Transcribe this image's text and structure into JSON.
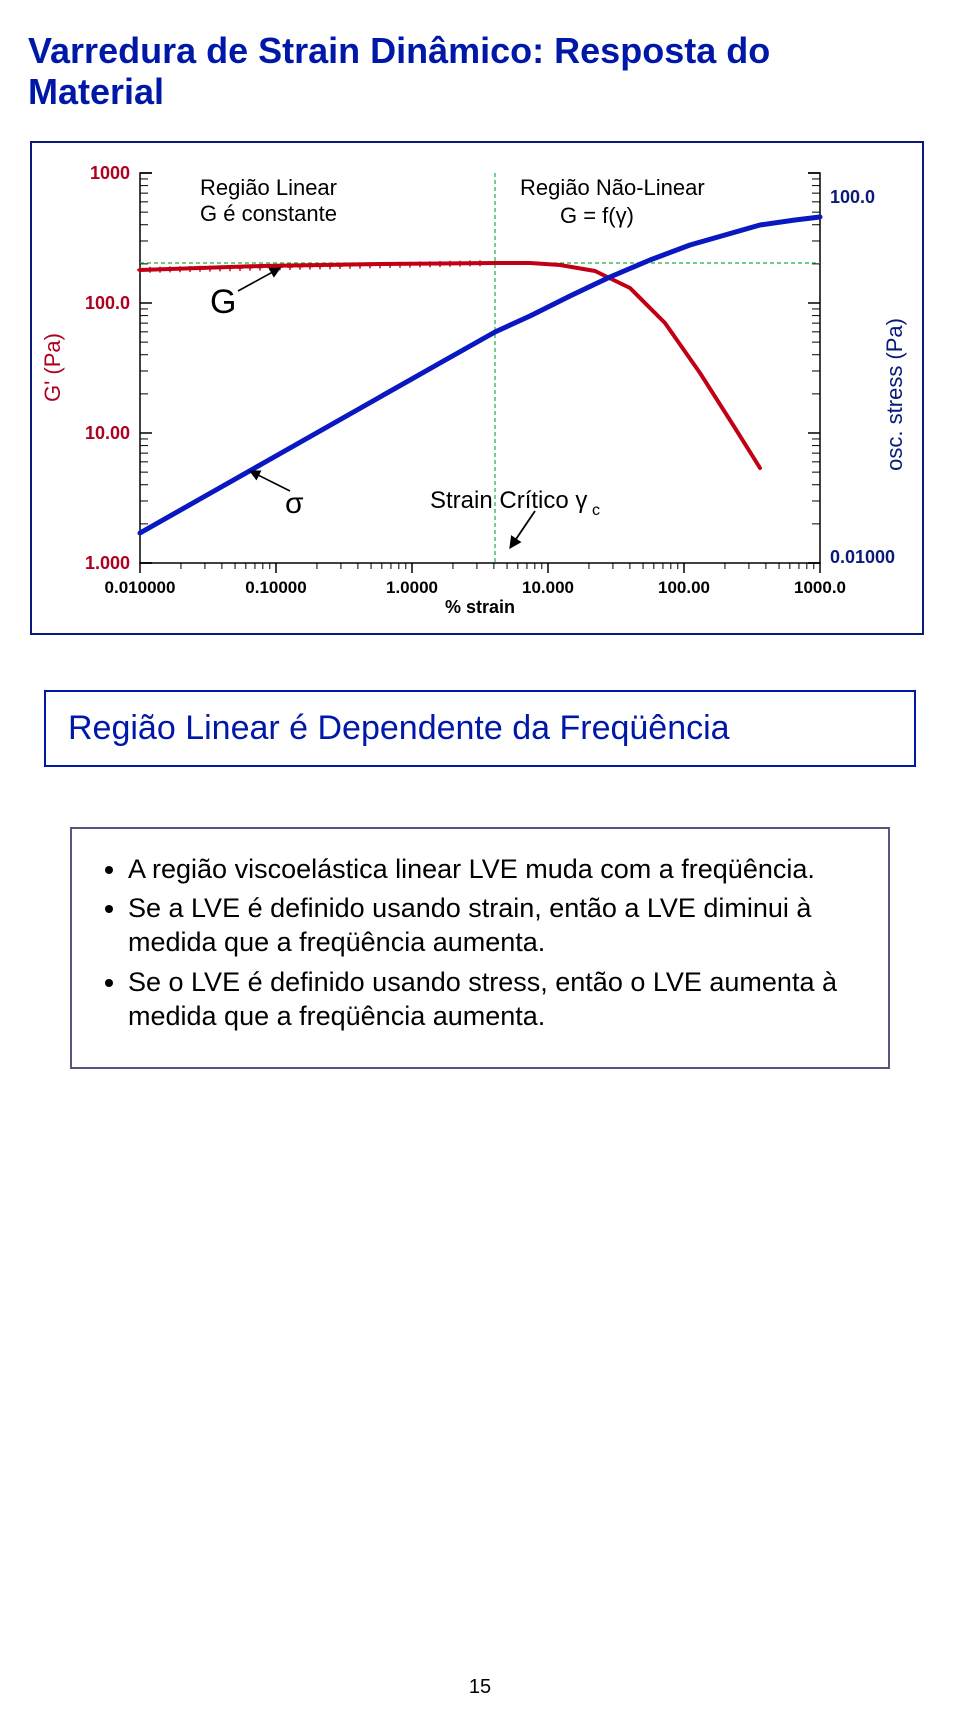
{
  "title_line1": "Varredura de Strain Dinâmico: Resposta do",
  "title_line2": "Material",
  "chart": {
    "type": "line-loglog",
    "x_label": "% strain",
    "y_left_label": "G' (Pa)",
    "y_right_label": "osc. stress (Pa)",
    "x_ticks": [
      "0.010000",
      "0.10000",
      "1.0000",
      "10.000",
      "100.00",
      "1000.0"
    ],
    "y_left_ticks": [
      "1000",
      "100.0",
      "10.00",
      "1.000"
    ],
    "y_right_ticks": [
      "100.0",
      "0.01000"
    ],
    "annotations": {
      "region_linear_l1": "Região Linear",
      "region_linear_l2": "G é constante",
      "region_nonlinear_l1": "Região Não-Linear",
      "region_nonlinear_l2": "G = f(γ)",
      "g_symbol": "G",
      "sigma_symbol": "σ",
      "critical_label": "Strain Crítico γ",
      "critical_sub": "c"
    },
    "colors": {
      "axis": "#000000",
      "tick_text_left": "#b00020",
      "tick_text_right": "#0a1a7a",
      "frame": "#0a1a7a",
      "g_curve": "#c20015",
      "sigma_curve": "#0a18c2",
      "annot_text": "#000000",
      "green_dash": "#1fae3a"
    },
    "g_curve_points": [
      [
        0,
        97
      ],
      [
        60,
        95
      ],
      [
        120,
        93
      ],
      [
        180,
        92
      ],
      [
        240,
        91
      ],
      [
        300,
        90.5
      ],
      [
        355,
        90
      ],
      [
        390,
        90
      ],
      [
        420,
        92
      ],
      [
        455,
        98
      ],
      [
        490,
        115
      ],
      [
        525,
        150
      ],
      [
        560,
        200
      ],
      [
        595,
        255
      ],
      [
        620,
        295
      ]
    ],
    "sigma_curve_points": [
      [
        0,
        360
      ],
      [
        60,
        326
      ],
      [
        120,
        292
      ],
      [
        180,
        258
      ],
      [
        240,
        224
      ],
      [
        300,
        190
      ],
      [
        355,
        159
      ],
      [
        390,
        143
      ],
      [
        430,
        123
      ],
      [
        470,
        104
      ],
      [
        510,
        87
      ],
      [
        550,
        72
      ],
      [
        585,
        62
      ],
      [
        620,
        52
      ],
      [
        655,
        47
      ],
      [
        680,
        44
      ]
    ],
    "line_width_g": 4,
    "line_width_sigma": 5,
    "plot_bg": "#ffffff"
  },
  "box1_text": "Região Linear é Dependente da Freqüência",
  "box2": {
    "bullet1": "A região viscoelástica linear LVE muda com a freqüência.",
    "bullet2": "Se a LVE é definido usando strain, então a LVE diminui à medida que a freqüência aumenta.",
    "bullet3": "Se o LVE é definido usando stress, então o LVE aumenta à medida que a freqüência aumenta."
  },
  "page_number": "15"
}
